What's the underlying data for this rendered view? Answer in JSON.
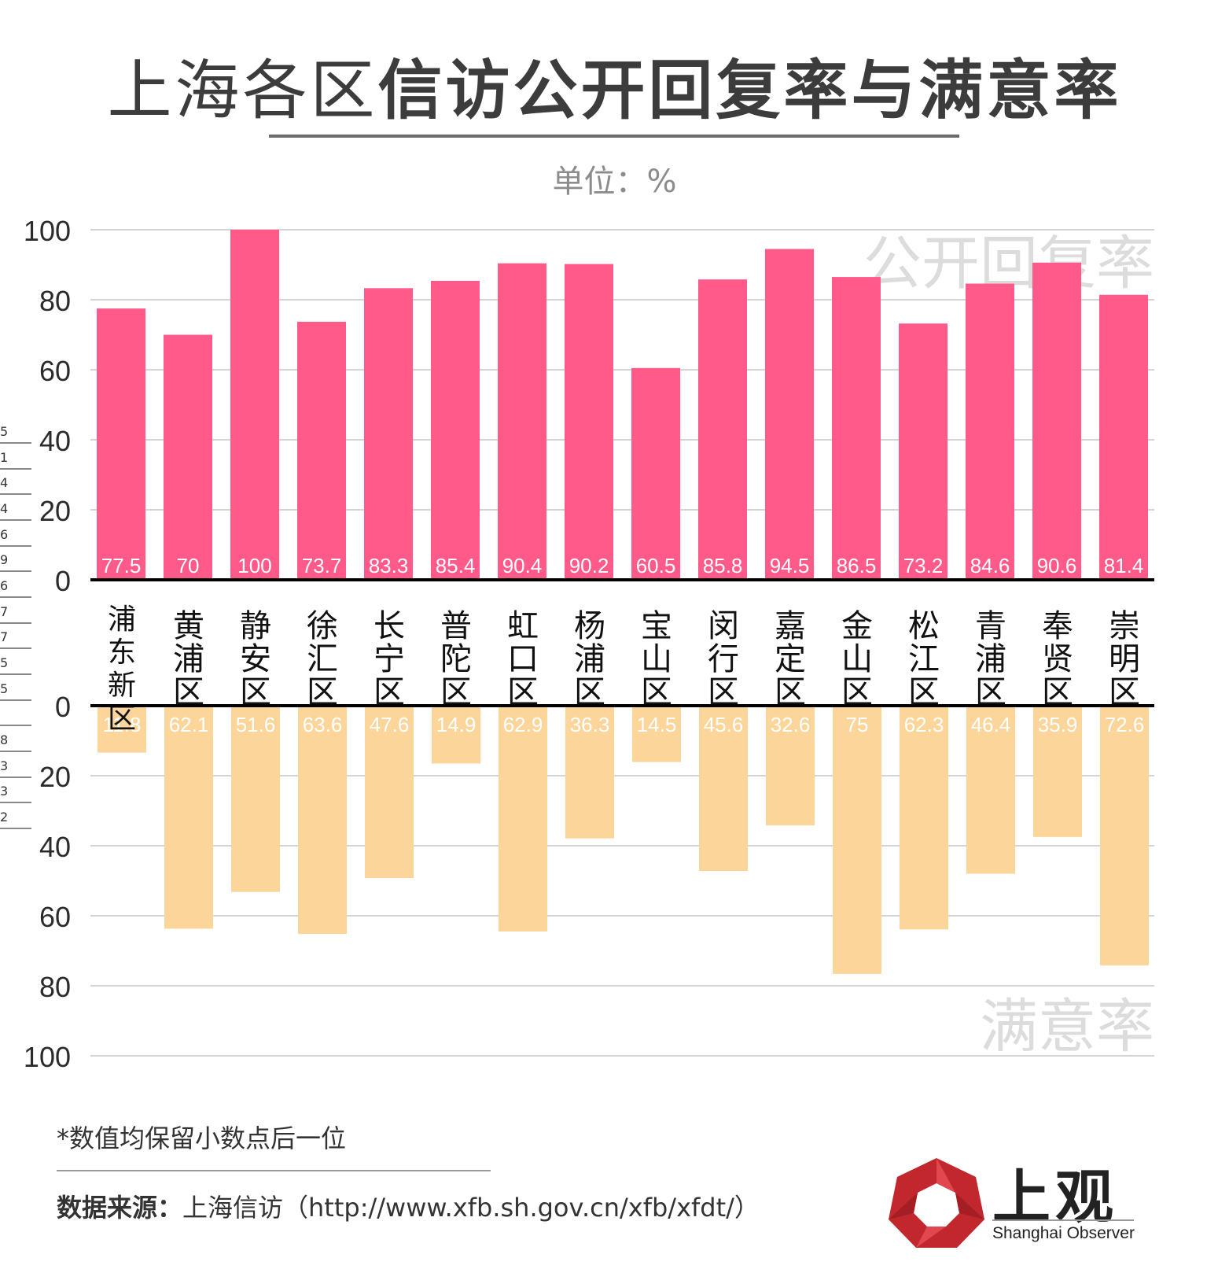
{
  "title": {
    "part1": "上海各区",
    "part2": "信访公开回复率与满意率"
  },
  "unit_label": "单位：%",
  "chart_data": {
    "type": "bar",
    "categories": [
      "浦东新区",
      "黄浦区",
      "静安区",
      "徐汇区",
      "长宁区",
      "普陀区",
      "虹口区",
      "杨浦区",
      "宝山区",
      "闵行区",
      "嘉定区",
      "金山区",
      "松江区",
      "青浦区",
      "奉贤区",
      "崇明区"
    ],
    "series": [
      {
        "name": "公开回复率",
        "direction": "up",
        "color": "#ff5a8a",
        "values": [
          77.5,
          70,
          100,
          73.7,
          83.3,
          85.4,
          90.4,
          90.2,
          60.5,
          85.8,
          94.5,
          86.5,
          73.2,
          84.6,
          90.6,
          81.4
        ]
      },
      {
        "name": "满意率",
        "direction": "down",
        "color": "#fcd59b",
        "values": [
          11.8,
          62.1,
          51.6,
          63.6,
          47.6,
          14.9,
          62.9,
          36.3,
          14.5,
          45.6,
          32.6,
          75,
          62.3,
          46.4,
          35.9,
          72.6
        ]
      }
    ],
    "y_ticks_top": [
      "100",
      "80",
      "60",
      "40",
      "20",
      "0"
    ],
    "y_ticks_bottom": [
      "0",
      "20",
      "40",
      "60",
      "80",
      "100"
    ],
    "ylim": [
      0,
      100
    ],
    "grid": true
  },
  "side_ticks": [
    "5",
    "1",
    "4",
    "4",
    "6",
    "9",
    "6",
    "7",
    "7",
    "5",
    "5",
    "",
    "8",
    "3",
    "3",
    "2"
  ],
  "footnote": "*数值均保留小数点后一位",
  "source": {
    "label": "数据来源：",
    "text": "上海信访（http://www.xfb.sh.gov.cn/xfb/xfdt/）"
  },
  "logo": {
    "cn": "上观",
    "en": "Shanghai Observer"
  },
  "colors": {
    "top_bar": "#ff5a8a",
    "bottom_bar": "#fcd59b",
    "logo_red": "#c1272d"
  }
}
